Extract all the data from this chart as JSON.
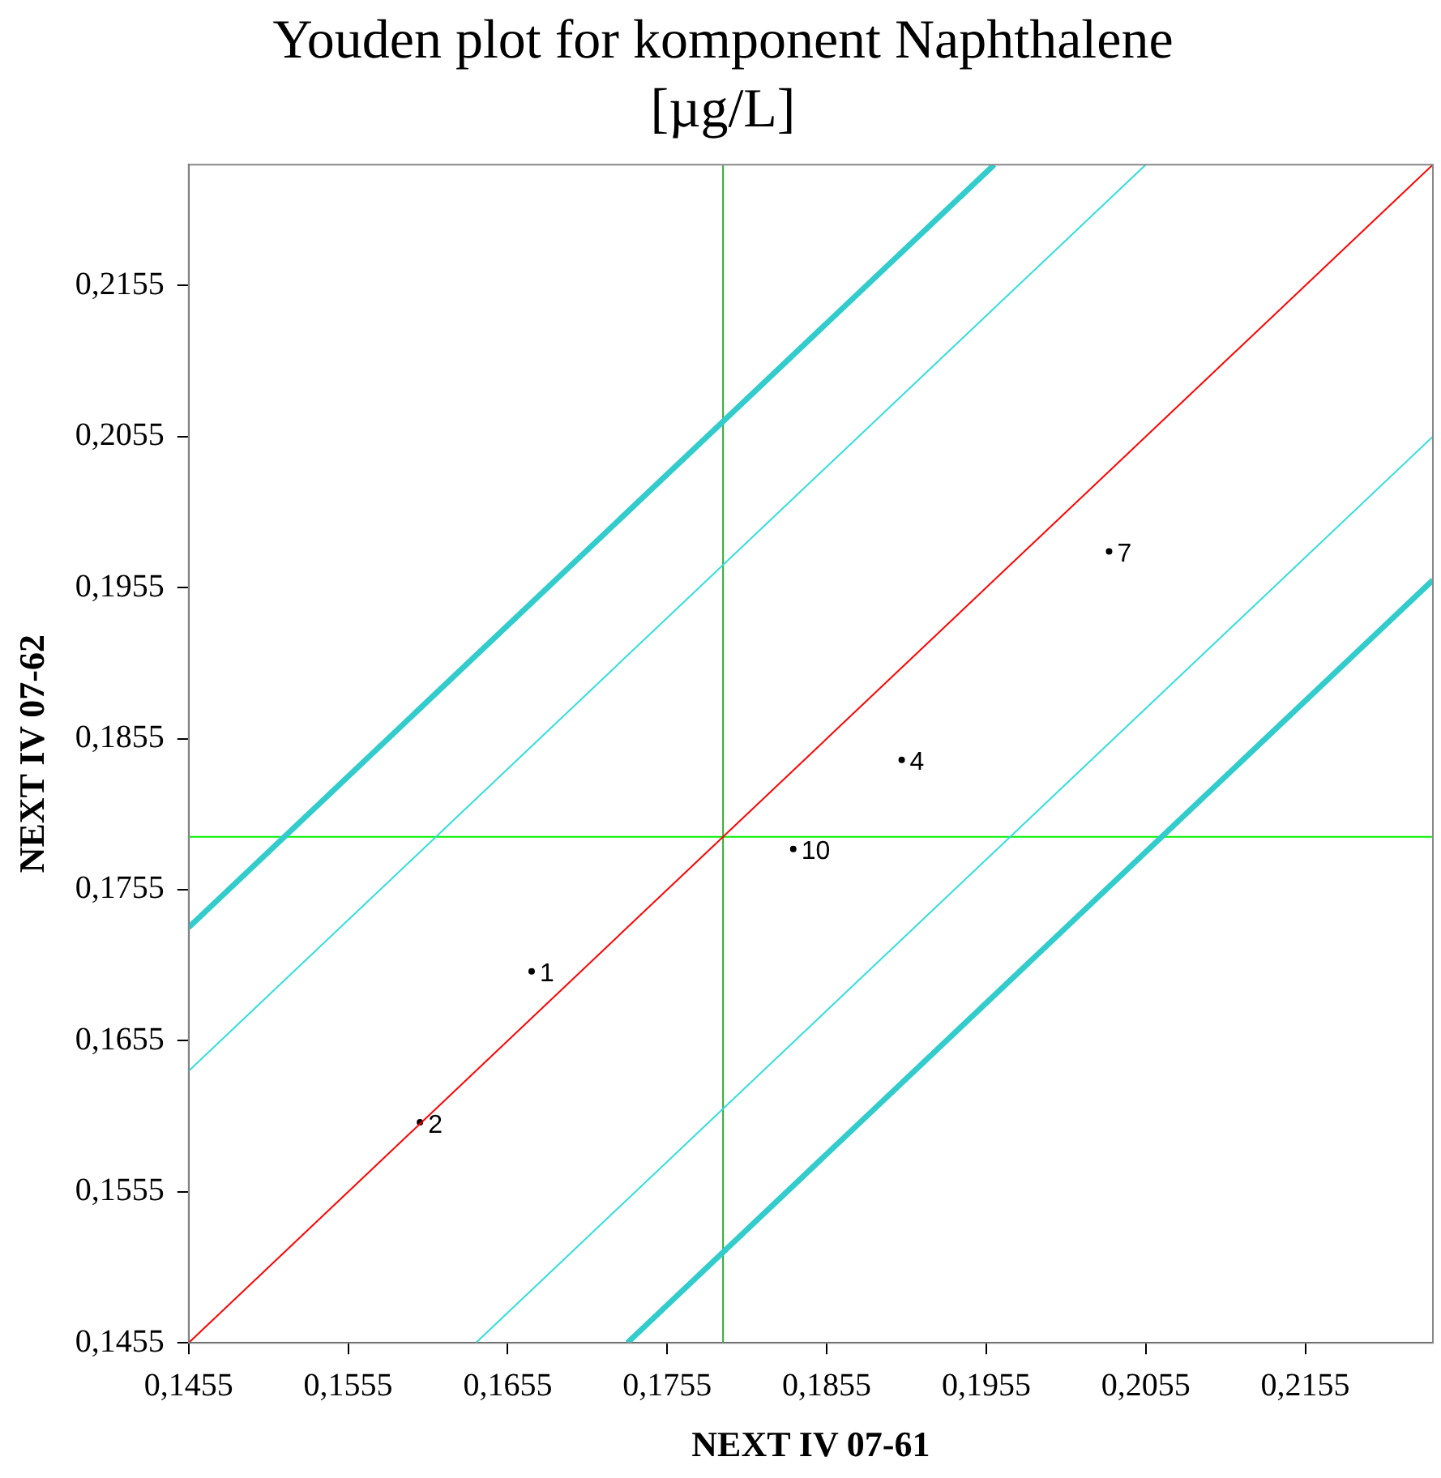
{
  "chart_data": {
    "type": "line",
    "title": "Youden plot for komponent Naphthalene",
    "subtitle": "[µg/L]",
    "xlabel": "NEXT IV 07-61",
    "ylabel": "NEXT IV 07-62",
    "xlim": [
      0.1455,
      0.2235
    ],
    "ylim": [
      0.1455,
      0.2235
    ],
    "xticks": [
      {
        "value": 0.1455,
        "label": "0,1455"
      },
      {
        "value": 0.1555,
        "label": "0,1555"
      },
      {
        "value": 0.1655,
        "label": "0,1655"
      },
      {
        "value": 0.1755,
        "label": "0,1755"
      },
      {
        "value": 0.1855,
        "label": "0,1855"
      },
      {
        "value": 0.1955,
        "label": "0,1955"
      },
      {
        "value": 0.2055,
        "label": "0,2055"
      },
      {
        "value": 0.2155,
        "label": "0,2155"
      }
    ],
    "yticks": [
      {
        "value": 0.1455,
        "label": "0,1455"
      },
      {
        "value": 0.1555,
        "label": "0,1555"
      },
      {
        "value": 0.1655,
        "label": "0,1655"
      },
      {
        "value": 0.1755,
        "label": "0,1755"
      },
      {
        "value": 0.1855,
        "label": "0,1855"
      },
      {
        "value": 0.1955,
        "label": "0,1955"
      },
      {
        "value": 0.2055,
        "label": "0,2055"
      },
      {
        "value": 0.2155,
        "label": "0,2155"
      }
    ],
    "grid": false,
    "legend": false,
    "ref_lines": [
      {
        "axis": "x",
        "value": 0.179,
        "color": "#33aa33"
      },
      {
        "axis": "y",
        "value": 0.179,
        "color": "#00ee00"
      }
    ],
    "annotations": [
      {
        "text": "1",
        "x": 0.167,
        "y": 0.1701
      },
      {
        "text": "2",
        "x": 0.16,
        "y": 0.1601
      },
      {
        "text": "4",
        "x": 0.1902,
        "y": 0.1841
      },
      {
        "text": "7",
        "x": 0.2032,
        "y": 0.1979
      },
      {
        "text": "10",
        "x": 0.1834,
        "y": 0.1782
      }
    ],
    "series": [
      {
        "color": "#ff0000",
        "x": [
          0.1455,
          0.2235
        ],
        "values": [
          0.1455,
          0.2235
        ]
      },
      {
        "color": "#33dddd",
        "x": [
          0.1455,
          0.2055
        ],
        "values": [
          0.1635,
          0.2235
        ]
      },
      {
        "color": "#33dddd",
        "x": [
          0.1635,
          0.2235
        ],
        "values": [
          0.1455,
          0.2055
        ]
      },
      {
        "color": "#33cccc",
        "x": [
          0.1455,
          0.196
        ],
        "values": [
          0.173,
          0.2235
        ]
      },
      {
        "color": "#33cccc",
        "x": [
          0.173,
          0.2235
        ],
        "values": [
          0.1455,
          0.196
        ]
      },
      {
        "type": "scatter",
        "color": "#000000",
        "x": [
          0.167,
          0.16,
          0.1902,
          0.2032,
          0.1834
        ],
        "values": [
          0.1701,
          0.1601,
          0.1841,
          0.1979,
          0.1782
        ]
      }
    ]
  }
}
